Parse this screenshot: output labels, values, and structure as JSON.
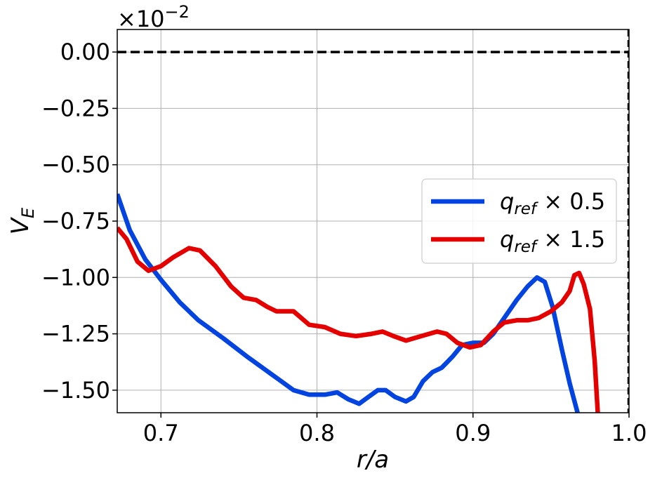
{
  "chart_data": {
    "type": "line",
    "title": "",
    "xlabel": "r/a",
    "ylabel": "V_E",
    "offset_text": "×10^-2",
    "xlim": [
      0.672,
      1.0
    ],
    "ylim": [
      -1.6,
      0.1
    ],
    "x_ticks": [
      0.7,
      0.8,
      0.9,
      1.0
    ],
    "x_tick_labels": [
      "0.7",
      "0.8",
      "0.9",
      "1.0"
    ],
    "y_ticks": [
      0.0,
      -0.25,
      -0.5,
      -0.75,
      -1.0,
      -1.25,
      -1.5
    ],
    "y_tick_labels": [
      "0.00",
      "−0.25",
      "−0.50",
      "−0.75",
      "−1.00",
      "−1.25",
      "−1.50"
    ],
    "grid": true,
    "legend_position": "center-right",
    "reference_lines": [
      {
        "orientation": "horizontal",
        "value": 0.0,
        "style": "dashed",
        "color": "#000000"
      },
      {
        "orientation": "vertical",
        "value": 1.0,
        "style": "dashed",
        "color": "#000000"
      }
    ],
    "series": [
      {
        "name": "q_ref × 0.5",
        "color": "#0343df",
        "points": [
          [
            0.672,
            -0.63
          ],
          [
            0.68,
            -0.79
          ],
          [
            0.69,
            -0.92
          ],
          [
            0.7,
            -1.01
          ],
          [
            0.712,
            -1.11
          ],
          [
            0.724,
            -1.19
          ],
          [
            0.74,
            -1.27
          ],
          [
            0.755,
            -1.35
          ],
          [
            0.765,
            -1.4
          ],
          [
            0.775,
            -1.45
          ],
          [
            0.785,
            -1.5
          ],
          [
            0.795,
            -1.52
          ],
          [
            0.805,
            -1.52
          ],
          [
            0.813,
            -1.51
          ],
          [
            0.82,
            -1.54
          ],
          [
            0.827,
            -1.56
          ],
          [
            0.833,
            -1.53
          ],
          [
            0.839,
            -1.5
          ],
          [
            0.844,
            -1.5
          ],
          [
            0.85,
            -1.53
          ],
          [
            0.857,
            -1.55
          ],
          [
            0.862,
            -1.53
          ],
          [
            0.868,
            -1.46
          ],
          [
            0.874,
            -1.42
          ],
          [
            0.88,
            -1.4
          ],
          [
            0.887,
            -1.35
          ],
          [
            0.893,
            -1.3
          ],
          [
            0.9,
            -1.29
          ],
          [
            0.907,
            -1.29
          ],
          [
            0.913,
            -1.25
          ],
          [
            0.92,
            -1.18
          ],
          [
            0.928,
            -1.1
          ],
          [
            0.935,
            -1.04
          ],
          [
            0.941,
            -1.0
          ],
          [
            0.946,
            -1.02
          ],
          [
            0.951,
            -1.13
          ],
          [
            0.957,
            -1.32
          ],
          [
            0.962,
            -1.47
          ],
          [
            0.967,
            -1.6
          ]
        ]
      },
      {
        "name": "q_ref × 1.5",
        "color": "#e50000",
        "points": [
          [
            0.672,
            -0.78
          ],
          [
            0.678,
            -0.83
          ],
          [
            0.685,
            -0.93
          ],
          [
            0.692,
            -0.97
          ],
          [
            0.7,
            -0.95
          ],
          [
            0.708,
            -0.91
          ],
          [
            0.718,
            -0.87
          ],
          [
            0.725,
            -0.88
          ],
          [
            0.735,
            -0.95
          ],
          [
            0.745,
            -1.04
          ],
          [
            0.753,
            -1.09
          ],
          [
            0.761,
            -1.1
          ],
          [
            0.768,
            -1.13
          ],
          [
            0.774,
            -1.15
          ],
          [
            0.785,
            -1.15
          ],
          [
            0.795,
            -1.21
          ],
          [
            0.805,
            -1.22
          ],
          [
            0.815,
            -1.25
          ],
          [
            0.825,
            -1.26
          ],
          [
            0.835,
            -1.25
          ],
          [
            0.842,
            -1.24
          ],
          [
            0.849,
            -1.26
          ],
          [
            0.857,
            -1.28
          ],
          [
            0.867,
            -1.26
          ],
          [
            0.877,
            -1.24
          ],
          [
            0.883,
            -1.25
          ],
          [
            0.89,
            -1.29
          ],
          [
            0.898,
            -1.31
          ],
          [
            0.905,
            -1.3
          ],
          [
            0.913,
            -1.24
          ],
          [
            0.92,
            -1.2
          ],
          [
            0.928,
            -1.19
          ],
          [
            0.935,
            -1.19
          ],
          [
            0.942,
            -1.18
          ],
          [
            0.95,
            -1.15
          ],
          [
            0.957,
            -1.11
          ],
          [
            0.962,
            -1.06
          ],
          [
            0.965,
            -0.99
          ],
          [
            0.968,
            -0.98
          ],
          [
            0.971,
            -1.03
          ],
          [
            0.975,
            -1.14
          ],
          [
            0.978,
            -1.37
          ],
          [
            0.98,
            -1.6
          ]
        ]
      }
    ]
  }
}
